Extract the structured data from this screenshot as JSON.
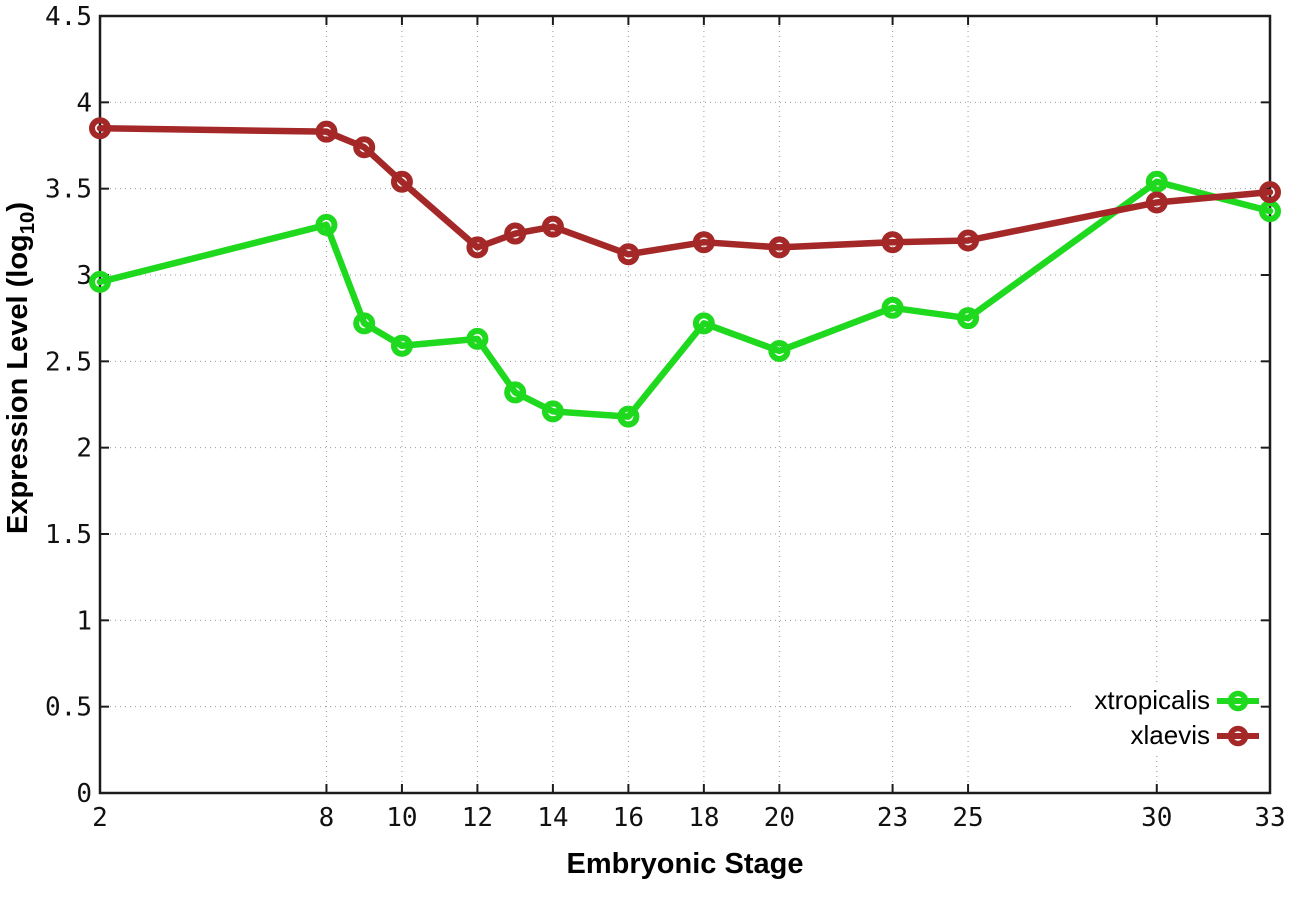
{
  "chart_data": {
    "type": "line",
    "title": "",
    "xlabel": "Embryonic Stage",
    "ylabel": "Expression Level (log10)",
    "ylabel_parts": {
      "prefix": "Expression Level (log",
      "sub": "10",
      "suffix": ")"
    },
    "x": [
      2,
      8,
      9,
      10,
      12,
      13,
      14,
      16,
      18,
      20,
      23,
      25,
      30,
      33
    ],
    "series": [
      {
        "name": "xtropicalis",
        "color": "#1FD91F",
        "values": [
          2.96,
          3.29,
          2.72,
          2.59,
          2.63,
          2.32,
          2.21,
          2.18,
          2.72,
          2.56,
          2.81,
          2.75,
          3.54,
          3.37
        ]
      },
      {
        "name": "xlaevis",
        "color": "#A42828",
        "values": [
          3.85,
          3.83,
          3.74,
          3.54,
          3.16,
          3.24,
          3.28,
          3.12,
          3.19,
          3.16,
          3.19,
          3.2,
          3.42,
          3.48
        ]
      }
    ],
    "xlim": [
      2,
      33
    ],
    "ylim": [
      0,
      4.5
    ],
    "xticks": [
      2,
      8,
      10,
      12,
      14,
      16,
      18,
      20,
      23,
      25,
      30,
      33
    ],
    "yticks": [
      0,
      0.5,
      1,
      1.5,
      2,
      2.5,
      3,
      3.5,
      4,
      4.5
    ],
    "grid": true,
    "grid_style": "dotted",
    "grid_color": "#999999",
    "border_color": "#1c1c1c",
    "marker": "open-circle",
    "legend_position": "bottom-right"
  }
}
